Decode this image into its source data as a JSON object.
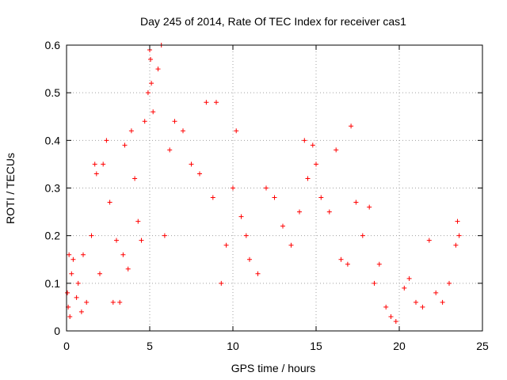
{
  "chart_data": {
    "type": "scatter",
    "title": "Day 245 of 2014, Rate Of TEC Index for receiver cas1",
    "xlabel": "GPS time / hours",
    "ylabel": "ROTI / TECUs",
    "xlim": [
      0,
      25
    ],
    "ylim": [
      0,
      0.6
    ],
    "xticks": [
      "0",
      "5",
      "10",
      "15",
      "20",
      "25"
    ],
    "yticks": [
      "0",
      "0.1",
      "0.2",
      "0.3",
      "0.4",
      "0.5",
      "0.6"
    ],
    "grid": true,
    "marker": "+",
    "color": "#ff0000",
    "series": [
      {
        "name": "ROTI",
        "points": [
          [
            0.05,
            0.08
          ],
          [
            0.1,
            0.05
          ],
          [
            0.15,
            0.16
          ],
          [
            0.2,
            0.03
          ],
          [
            0.3,
            0.12
          ],
          [
            0.4,
            0.15
          ],
          [
            0.6,
            0.07
          ],
          [
            0.7,
            0.1
          ],
          [
            0.9,
            0.04
          ],
          [
            1.0,
            0.16
          ],
          [
            1.2,
            0.06
          ],
          [
            1.5,
            0.2
          ],
          [
            1.7,
            0.35
          ],
          [
            1.8,
            0.33
          ],
          [
            2.0,
            0.12
          ],
          [
            2.2,
            0.35
          ],
          [
            2.4,
            0.4
          ],
          [
            2.6,
            0.27
          ],
          [
            2.8,
            0.06
          ],
          [
            3.0,
            0.19
          ],
          [
            3.2,
            0.06
          ],
          [
            3.4,
            0.16
          ],
          [
            3.5,
            0.39
          ],
          [
            3.7,
            0.13
          ],
          [
            3.9,
            0.42
          ],
          [
            4.1,
            0.32
          ],
          [
            4.3,
            0.23
          ],
          [
            4.5,
            0.19
          ],
          [
            4.7,
            0.44
          ],
          [
            4.9,
            0.5
          ],
          [
            5.0,
            0.59
          ],
          [
            5.05,
            0.57
          ],
          [
            5.1,
            0.52
          ],
          [
            5.2,
            0.46
          ],
          [
            5.5,
            0.55
          ],
          [
            5.7,
            0.6
          ],
          [
            5.9,
            0.2
          ],
          [
            6.2,
            0.38
          ],
          [
            6.5,
            0.44
          ],
          [
            7.0,
            0.42
          ],
          [
            7.5,
            0.35
          ],
          [
            8.0,
            0.33
          ],
          [
            8.4,
            0.48
          ],
          [
            8.8,
            0.28
          ],
          [
            9.0,
            0.48
          ],
          [
            9.3,
            0.1
          ],
          [
            9.6,
            0.18
          ],
          [
            10.0,
            0.3
          ],
          [
            10.2,
            0.42
          ],
          [
            10.5,
            0.24
          ],
          [
            10.8,
            0.2
          ],
          [
            11.0,
            0.15
          ],
          [
            11.5,
            0.12
          ],
          [
            12.0,
            0.3
          ],
          [
            12.5,
            0.28
          ],
          [
            13.0,
            0.22
          ],
          [
            13.5,
            0.18
          ],
          [
            14.0,
            0.25
          ],
          [
            14.3,
            0.4
          ],
          [
            14.5,
            0.32
          ],
          [
            14.8,
            0.39
          ],
          [
            15.0,
            0.35
          ],
          [
            15.3,
            0.28
          ],
          [
            15.8,
            0.25
          ],
          [
            16.2,
            0.38
          ],
          [
            16.5,
            0.15
          ],
          [
            16.9,
            0.14
          ],
          [
            17.1,
            0.43
          ],
          [
            17.4,
            0.27
          ],
          [
            17.8,
            0.2
          ],
          [
            18.2,
            0.26
          ],
          [
            18.5,
            0.1
          ],
          [
            18.8,
            0.14
          ],
          [
            19.2,
            0.05
          ],
          [
            19.5,
            0.03
          ],
          [
            19.8,
            0.02
          ],
          [
            20.3,
            0.09
          ],
          [
            20.6,
            0.11
          ],
          [
            21.0,
            0.06
          ],
          [
            21.4,
            0.05
          ],
          [
            21.8,
            0.19
          ],
          [
            22.2,
            0.08
          ],
          [
            22.6,
            0.06
          ],
          [
            23.0,
            0.1
          ],
          [
            23.4,
            0.18
          ],
          [
            23.5,
            0.23
          ],
          [
            23.6,
            0.2
          ]
        ]
      }
    ]
  }
}
